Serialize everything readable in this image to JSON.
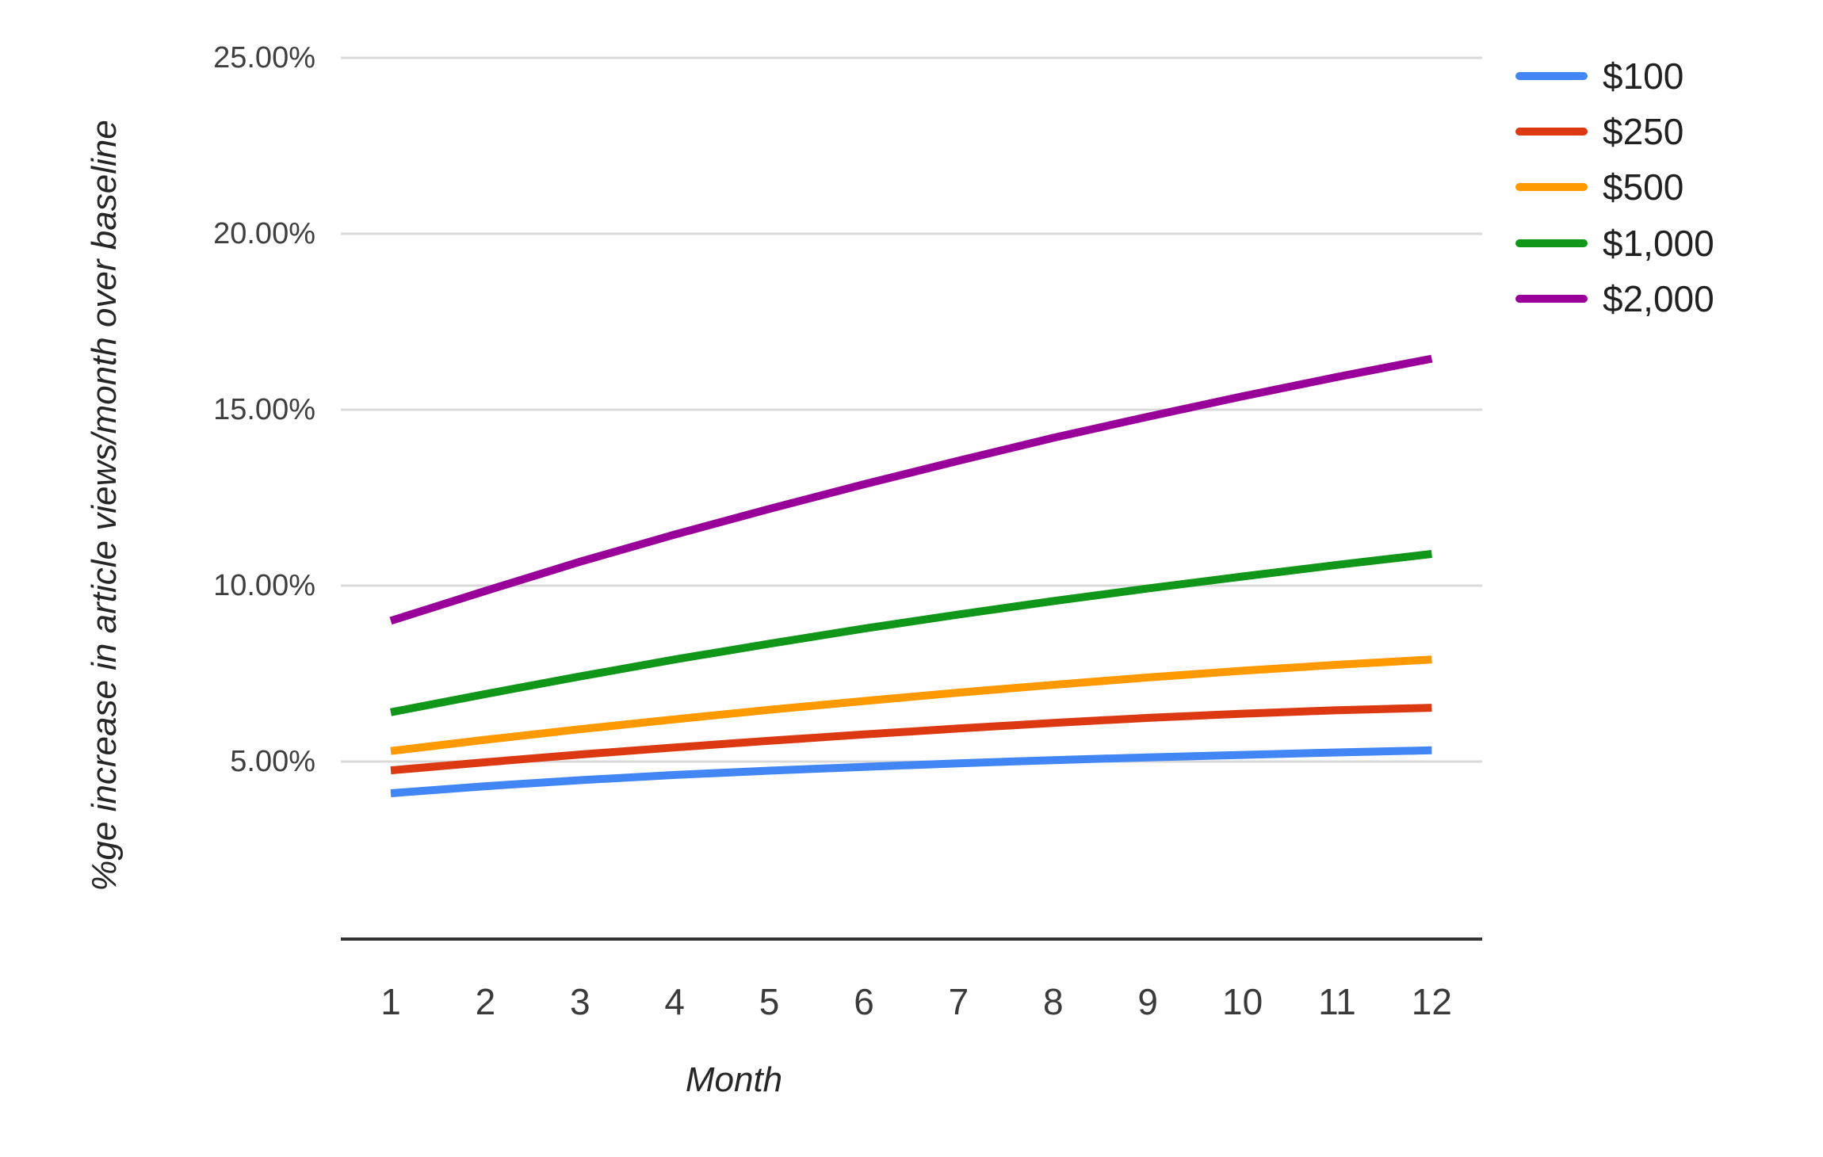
{
  "chart_data": {
    "type": "line",
    "title": "",
    "xlabel": "Month",
    "ylabel": "%ge increase in article views/month over baseline",
    "x": [
      1,
      2,
      3,
      4,
      5,
      6,
      7,
      8,
      9,
      10,
      11,
      12
    ],
    "x_tick_labels": [
      "1",
      "2",
      "3",
      "4",
      "5",
      "6",
      "7",
      "8",
      "9",
      "10",
      "11",
      "12"
    ],
    "series": [
      {
        "name": "$100",
        "color": "#4285F4",
        "values": [
          4.1,
          4.3,
          4.47,
          4.62,
          4.74,
          4.85,
          4.95,
          5.04,
          5.12,
          5.19,
          5.26,
          5.32
        ]
      },
      {
        "name": "$250",
        "color": "#DC3912",
        "values": [
          4.75,
          4.98,
          5.2,
          5.4,
          5.59,
          5.77,
          5.94,
          6.1,
          6.24,
          6.36,
          6.46,
          6.53
        ]
      },
      {
        "name": "$500",
        "color": "#FF9900",
        "values": [
          5.3,
          5.62,
          5.92,
          6.2,
          6.47,
          6.72,
          6.96,
          7.18,
          7.39,
          7.58,
          7.75,
          7.9
        ]
      },
      {
        "name": "$1,000",
        "color": "#109618",
        "values": [
          6.4,
          6.92,
          7.42,
          7.9,
          8.35,
          8.78,
          9.18,
          9.56,
          9.92,
          10.26,
          10.59,
          10.9
        ]
      },
      {
        "name": "$2,000",
        "color": "#990099",
        "values": [
          9.0,
          9.85,
          10.68,
          11.45,
          12.18,
          12.88,
          13.55,
          14.2,
          14.8,
          15.38,
          15.93,
          16.45
        ]
      }
    ],
    "y_ticks": [
      {
        "label": "5.00%",
        "value": 5
      },
      {
        "label": "10.00%",
        "value": 10
      },
      {
        "label": "15.00%",
        "value": 15
      },
      {
        "label": "20.00%",
        "value": 20
      },
      {
        "label": "25.00%",
        "value": 25
      }
    ],
    "ylim": [
      0,
      25
    ],
    "grid": true,
    "legend_position": "right",
    "colors": {
      "gridline": "#d9d9d9",
      "axis_line": "#333333",
      "tick_label": "#3f3f3f",
      "axis_title": "#262626",
      "background": "#ffffff"
    }
  }
}
